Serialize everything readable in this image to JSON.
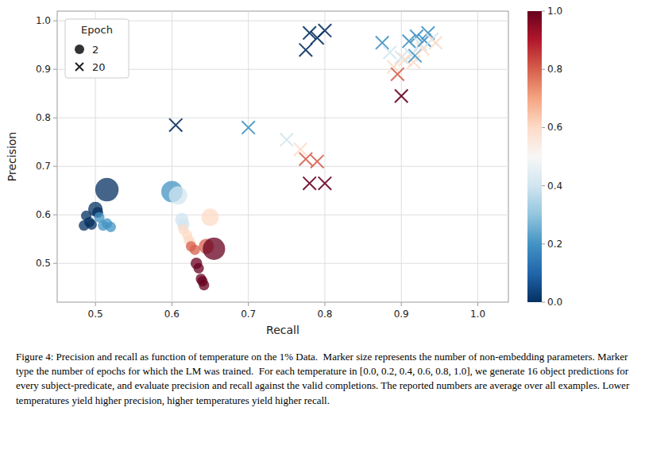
{
  "chart_data": {
    "type": "scatter",
    "x_label": "Recall",
    "y_label": "Precision",
    "xlim": [
      0.45,
      1.04
    ],
    "ylim": [
      0.42,
      1.02
    ],
    "xticks": [
      0.5,
      0.6,
      0.7,
      0.8,
      0.9,
      {
        "value": 1,
        "label": "1.0"
      }
    ],
    "yticks": [
      0.5,
      0.6,
      0.7,
      0.8,
      0.9,
      {
        "value": 1,
        "label": "1.0"
      }
    ],
    "grid": true,
    "legend": "upper left",
    "legend_title": "Epoch",
    "color_range": [
      0,
      1
    ],
    "color_ticks": [
      {
        "value": 0,
        "label": "0.0"
      },
      0.2,
      0.4,
      0.6,
      0.8,
      {
        "value": 1,
        "label": "1.0"
      }
    ],
    "series": [
      {
        "name": "2",
        "marker": "circle",
        "x": [
          0.485,
          0.488,
          0.492,
          0.495,
          0.5,
          0.503,
          0.505,
          0.51,
          0.515,
          0.52,
          0.515,
          0.6,
          0.608,
          0.613,
          0.615,
          0.615,
          0.62,
          0.622,
          0.625,
          0.625,
          0.63,
          0.632,
          0.635,
          0.638,
          0.64,
          0.642,
          0.645,
          0.65,
          0.655
        ],
        "values": [
          0.578,
          0.598,
          0.585,
          0.58,
          0.612,
          0.605,
          0.595,
          0.578,
          0.582,
          0.575,
          0.652,
          0.648,
          0.64,
          0.59,
          0.58,
          0.57,
          0.558,
          0.548,
          0.542,
          0.535,
          0.528,
          0.5,
          0.49,
          0.468,
          0.463,
          0.455,
          0.535,
          0.595,
          0.53
        ],
        "sizes": [
          18,
          18,
          18,
          18,
          35,
          20,
          18,
          18,
          18,
          18,
          90,
          75,
          55,
          30,
          25,
          18,
          18,
          18,
          18,
          18,
          18,
          22,
          18,
          18,
          18,
          18,
          38,
          50,
          82
        ],
        "temperatures": [
          0.0,
          0.0,
          0.0,
          0.0,
          0.0,
          0.0,
          0.2,
          0.2,
          0.2,
          0.2,
          0.0,
          0.2,
          0.4,
          0.4,
          0.4,
          0.6,
          0.6,
          0.6,
          0.6,
          0.8,
          0.8,
          1.0,
          1.0,
          1.0,
          1.0,
          1.0,
          0.8,
          0.6,
          1.0
        ]
      },
      {
        "name": "20",
        "marker": "x",
        "x": [
          0.605,
          0.7,
          0.75,
          0.768,
          0.775,
          0.78,
          0.775,
          0.78,
          0.79,
          0.8,
          0.79,
          0.8,
          0.875,
          0.885,
          0.89,
          0.895,
          0.9,
          0.9,
          0.905,
          0.91,
          0.913,
          0.916,
          0.918,
          0.92,
          0.925,
          0.928,
          0.93,
          0.935,
          0.94,
          0.945
        ],
        "values": [
          0.785,
          0.78,
          0.755,
          0.735,
          0.715,
          0.665,
          0.94,
          0.975,
          0.965,
          0.98,
          0.71,
          0.665,
          0.955,
          0.935,
          0.905,
          0.89,
          0.845,
          0.925,
          0.92,
          0.958,
          0.93,
          0.915,
          0.928,
          0.968,
          0.952,
          0.942,
          0.96,
          0.975,
          0.962,
          0.955
        ],
        "sizes": [
          28,
          28,
          28,
          28,
          28,
          28,
          28,
          28,
          28,
          28,
          28,
          28,
          28,
          28,
          28,
          28,
          28,
          28,
          28,
          28,
          28,
          28,
          28,
          28,
          28,
          28,
          28,
          28,
          28,
          28
        ],
        "temperatures": [
          0.0,
          0.2,
          0.4,
          0.6,
          0.8,
          1.0,
          0.0,
          0.0,
          0.0,
          0.0,
          0.8,
          1.0,
          0.2,
          0.4,
          0.6,
          0.8,
          1.0,
          0.4,
          0.6,
          0.2,
          0.4,
          0.6,
          0.2,
          0.2,
          0.4,
          0.6,
          0.2,
          0.2,
          0.4,
          0.6
        ]
      }
    ],
    "caption": "Figure 4: Precision and recall as function of temperature on the 1% Data.  Marker size represents the number of non-embedding parameters. Marker type the number of epochs for which the LM was trained.  For each temperature in [0.0, 0.2, 0.4, 0.6, 0.8, 1.0], we generate 16 object predictions for every subject-predicate, and evaluate precision and recall against the valid completions. The reported numbers are average over all examples. Lower temperatures yield higher precision, higher temperatures yield higher recall."
  }
}
